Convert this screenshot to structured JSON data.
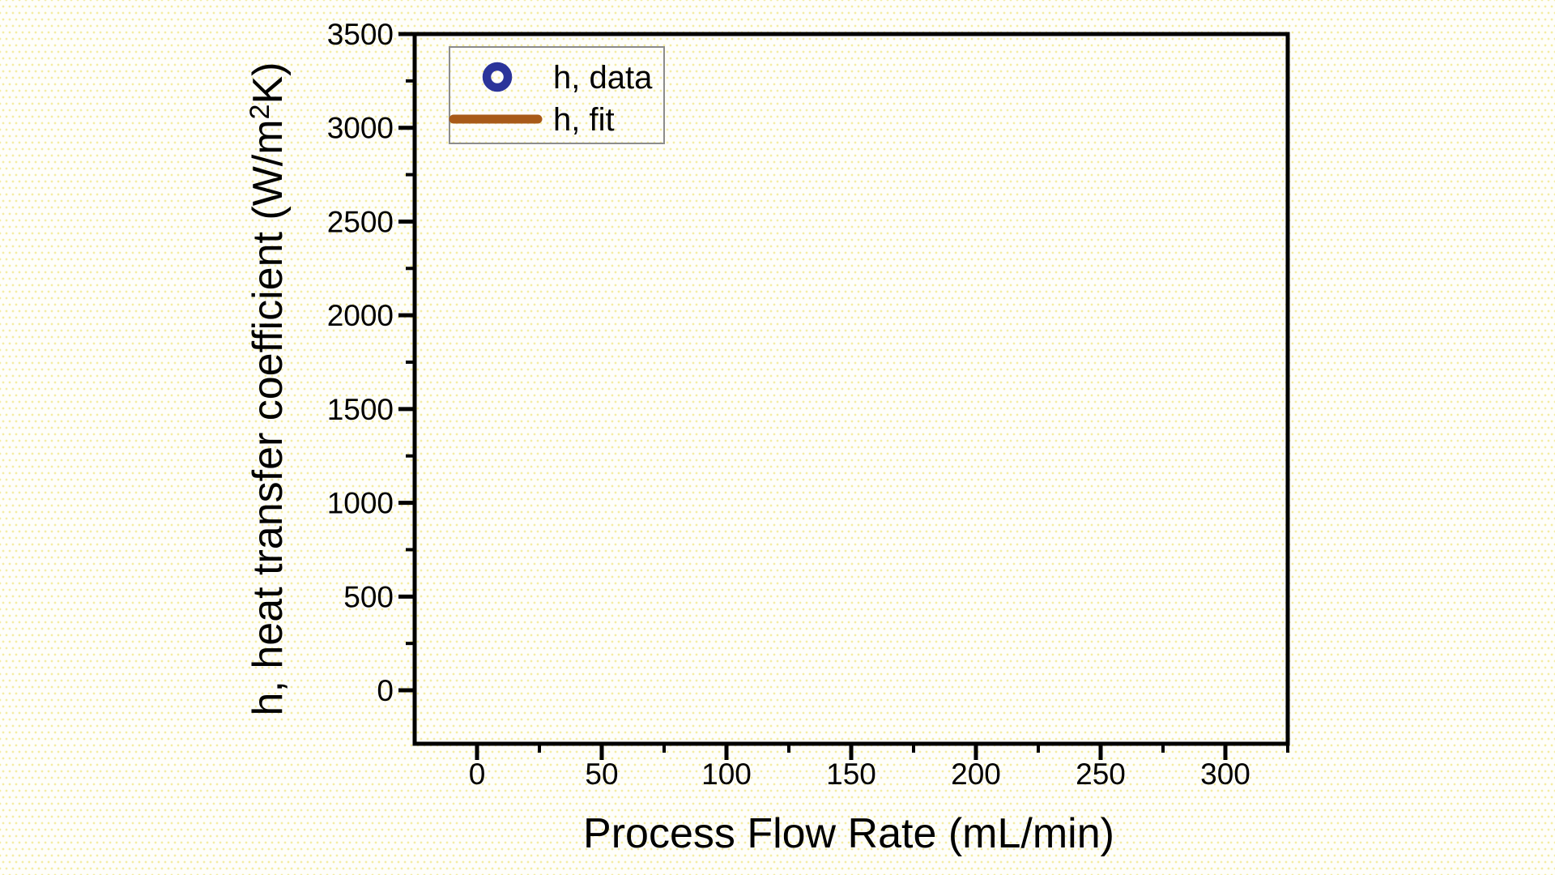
{
  "figure": {
    "background": {
      "base_color": "#FEFEFA",
      "dot_color": "#F4ECA4",
      "pattern": "diagonal-dot-grid"
    }
  },
  "chart_data": {
    "type": "scatter",
    "title": "",
    "xlabel": "Process Flow Rate (mL/min)",
    "ylabel": "h, heat transfer coefficient (W/m²K)",
    "ylabel_parts": {
      "pre": "h, heat transfer coefficient (W/m",
      "sup": "2",
      "post": "K)"
    },
    "xlim": [
      -25,
      325
    ],
    "ylim": [
      -285,
      3500
    ],
    "x_major_ticks": [
      0,
      50,
      100,
      150,
      200,
      250,
      300
    ],
    "x_minor_ticks": [
      25,
      75,
      125,
      175,
      225,
      275,
      325
    ],
    "y_major_ticks": [
      0,
      500,
      1000,
      1500,
      2000,
      2500,
      3000,
      3500
    ],
    "y_minor_ticks": [
      250,
      750,
      1250,
      1750,
      2250,
      2750,
      3250
    ],
    "grid": false,
    "axis_color": "#000000",
    "tick_direction": "out",
    "legend": {
      "position": "top-left-inside",
      "border_color": "#8C8C8C",
      "entries": [
        {
          "label": "h, data",
          "symbol": "open-circle",
          "color": "#2B349A"
        },
        {
          "label": "h, fit",
          "symbol": "line",
          "color": "#A85A19"
        }
      ]
    },
    "series": [
      {
        "name": "h, data",
        "type": "scatter",
        "marker": "open-circle",
        "color": "#2B349A",
        "x": [],
        "y": []
      },
      {
        "name": "h, fit",
        "type": "line",
        "color": "#A85A19",
        "x": [],
        "y": []
      }
    ]
  }
}
